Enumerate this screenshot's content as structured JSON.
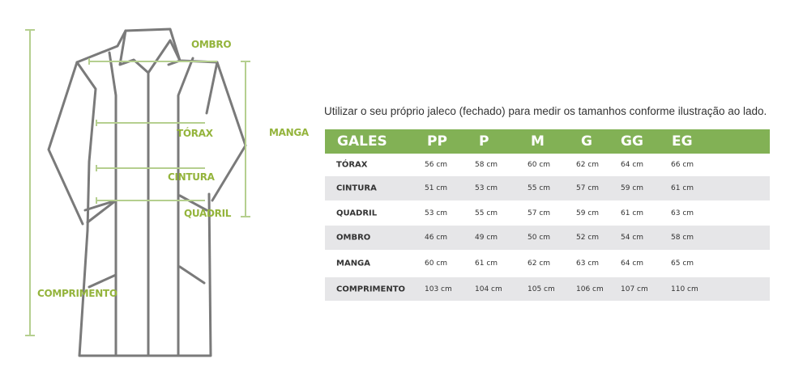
{
  "diagram_labels": {
    "ombro": "OMBRO",
    "torax": "TÓRAX",
    "cintura": "CINTURA",
    "quadril": "QUADRIL",
    "manga": "MANGA",
    "comprimento": "COMPRIMENTO"
  },
  "colors": {
    "accent": "#82b155",
    "label": "#94b43c",
    "stripe": "#e6e6e8"
  },
  "intro": "Utilizar o seu próprio jaleco (fechado) para medir os tamanhos conforme ilustração ao lado.",
  "table": {
    "headers": [
      "GALES",
      "PP",
      "P",
      "M",
      "G",
      "GG",
      "EG"
    ],
    "rows": [
      {
        "label": "TÓRAX",
        "values": [
          "56 cm",
          "58 cm",
          "60 cm",
          "62 cm",
          "64 cm",
          "66 cm"
        ]
      },
      {
        "label": "CINTURA",
        "values": [
          "51 cm",
          "53 cm",
          "55 cm",
          "57 cm",
          "59 cm",
          "61 cm"
        ]
      },
      {
        "label": "QUADRIL",
        "values": [
          "53 cm",
          "55 cm",
          "57 cm",
          "59 cm",
          "61 cm",
          "63 cm"
        ]
      },
      {
        "label": "OMBRO",
        "values": [
          "46 cm",
          "49 cm",
          "50 cm",
          "52 cm",
          "54 cm",
          "58 cm"
        ]
      },
      {
        "label": "MANGA",
        "values": [
          "60 cm",
          "61 cm",
          "62 cm",
          "63 cm",
          "64 cm",
          "65 cm"
        ]
      },
      {
        "label": "COMPRIMENTO",
        "values": [
          "103 cm",
          "104 cm",
          "105 cm",
          "106 cm",
          "107 cm",
          "110 cm"
        ]
      }
    ]
  }
}
